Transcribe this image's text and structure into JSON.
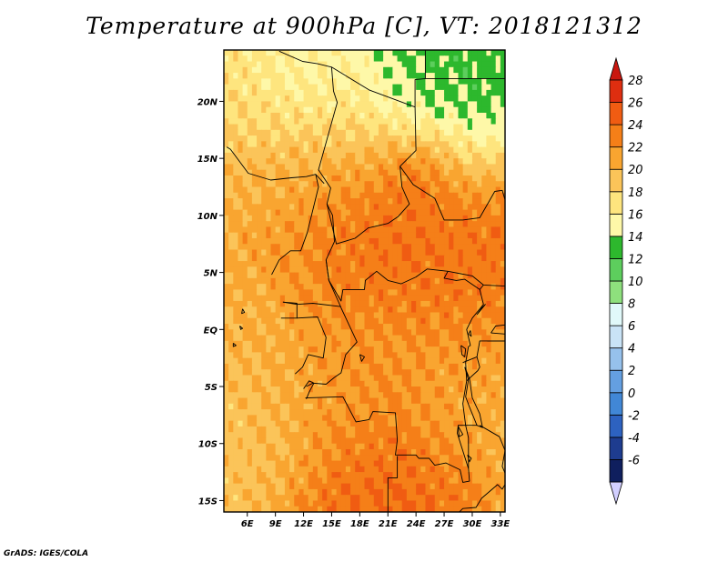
{
  "title": "Temperature at 900hPa [C], VT: 2018121312",
  "credit": "GrADS: IGES/COLA",
  "map": {
    "projection": "latlon",
    "lon_range": [
      3.5,
      33.5
    ],
    "lat_range": [
      -16,
      24.5
    ],
    "lat_ticks": [
      {
        "value": 20,
        "label": "20N"
      },
      {
        "value": 15,
        "label": "15N"
      },
      {
        "value": 10,
        "label": "10N"
      },
      {
        "value": 5,
        "label": "5N"
      },
      {
        "value": 0,
        "label": "EQ"
      },
      {
        "value": -5,
        "label": "5S"
      },
      {
        "value": -10,
        "label": "10S"
      },
      {
        "value": -15,
        "label": "15S"
      }
    ],
    "lon_ticks": [
      {
        "value": 6,
        "label": "6E"
      },
      {
        "value": 9,
        "label": "9E"
      },
      {
        "value": 12,
        "label": "12E"
      },
      {
        "value": 15,
        "label": "15E"
      },
      {
        "value": 18,
        "label": "18E"
      },
      {
        "value": 21,
        "label": "21E"
      },
      {
        "value": 24,
        "label": "24E"
      },
      {
        "value": 27,
        "label": "27E"
      },
      {
        "value": 30,
        "label": "30E"
      },
      {
        "value": 33,
        "label": "33E"
      }
    ],
    "field_centers": [
      {
        "lon": 19,
        "lat": 8,
        "r": 6,
        "v": 27
      },
      {
        "lon": 31,
        "lat": 6,
        "r": 5,
        "v": 26.5
      },
      {
        "lon": 20,
        "lat": -15,
        "r": 6,
        "v": 27
      },
      {
        "lon": 14,
        "lat": 8,
        "r": 4,
        "v": 25
      },
      {
        "lon": 25,
        "lat": 9,
        "r": 5,
        "v": 26
      },
      {
        "lon": 24,
        "lat": 13,
        "r": 2,
        "v": 27
      },
      {
        "lon": 25,
        "lat": 0,
        "r": 6,
        "v": 24
      },
      {
        "lon": 30,
        "lat": -5,
        "r": 4,
        "v": 22
      },
      {
        "lon": 6,
        "lat": 10,
        "r": 4,
        "v": 23
      },
      {
        "lon": 10,
        "lat": 12,
        "r": 4,
        "v": 23
      },
      {
        "lon": 15,
        "lat": 19,
        "r": 5,
        "v": 19
      },
      {
        "lon": 8,
        "lat": 20,
        "r": 6,
        "v": 19
      },
      {
        "lon": 12,
        "lat": 23,
        "r": 3,
        "v": 15.5
      },
      {
        "lon": 22,
        "lat": 23,
        "r": 4,
        "v": 14.5
      },
      {
        "lon": 29,
        "lat": 20,
        "r": 5,
        "v": 14
      },
      {
        "lon": 7,
        "lat": -10,
        "r": 4,
        "v": 21
      },
      {
        "lon": 8,
        "lat": 0,
        "r": 4,
        "v": 22
      },
      {
        "lon": 15,
        "lat": -3,
        "r": 5,
        "v": 23
      }
    ],
    "field_default": 20.5,
    "countries": [
      [
        [
          9.4,
          24.4
        ],
        [
          11.9,
          23.5
        ],
        [
          13.5,
          23.3
        ],
        [
          15.0,
          23.0
        ],
        [
          19.0,
          21.0
        ],
        [
          23.9,
          19.5
        ],
        [
          24.0,
          15.7
        ],
        [
          22.3,
          14.3
        ],
        [
          22.5,
          12.5
        ],
        [
          23.3,
          11.0
        ],
        [
          22.1,
          9.9
        ],
        [
          21.0,
          9.3
        ],
        [
          18.9,
          8.9
        ],
        [
          17.5,
          8.0
        ],
        [
          15.5,
          7.5
        ],
        [
          14.5,
          11.0
        ],
        [
          14.9,
          12.4
        ],
        [
          13.6,
          14.0
        ],
        [
          15.6,
          19.9
        ],
        [
          15.2,
          20.9
        ],
        [
          15.0,
          23.0
        ]
      ],
      [
        [
          3.8,
          16.0
        ],
        [
          4.2,
          15.8
        ],
        [
          6.1,
          13.7
        ],
        [
          8.5,
          13.1
        ],
        [
          10.7,
          13.3
        ],
        [
          12.3,
          13.4
        ],
        [
          13.3,
          13.6
        ],
        [
          14.2,
          12.8
        ]
      ],
      [
        [
          13.3,
          13.6
        ],
        [
          13.6,
          12.5
        ],
        [
          12.4,
          8.5
        ],
        [
          11.7,
          6.9
        ],
        [
          10.6,
          6.9
        ],
        [
          9.4,
          6.1
        ],
        [
          8.6,
          4.8
        ]
      ],
      [
        [
          14.5,
          11.0
        ],
        [
          15.1,
          10.0
        ],
        [
          15.3,
          7.7
        ],
        [
          14.4,
          6.1
        ],
        [
          14.7,
          4.3
        ],
        [
          15.8,
          2.3
        ],
        [
          16.0,
          1.9
        ]
      ],
      [
        [
          14.4,
          6.1
        ],
        [
          14.7,
          4.3
        ],
        [
          16.0,
          2.5
        ],
        [
          16.2,
          3.5
        ],
        [
          18.5,
          3.5
        ],
        [
          18.6,
          4.3
        ],
        [
          19.8,
          5.1
        ],
        [
          21.0,
          4.3
        ],
        [
          22.4,
          4.0
        ],
        [
          24.0,
          4.6
        ],
        [
          25.2,
          5.3
        ],
        [
          27.4,
          5.1
        ],
        [
          27.0,
          4.5
        ],
        [
          28.3,
          4.3
        ],
        [
          29.2,
          4.4
        ],
        [
          30.8,
          3.5
        ],
        [
          31.2,
          3.9
        ]
      ],
      [
        [
          23.9,
          19.5
        ],
        [
          23.9,
          21.9
        ],
        [
          25.0,
          22.0
        ],
        [
          36.0,
          22.0
        ]
      ],
      [
        [
          25.0,
          22.0
        ],
        [
          25.0,
          24.5
        ]
      ],
      [
        [
          22.3,
          14.3
        ],
        [
          23.7,
          12.7
        ],
        [
          26.0,
          11.5
        ],
        [
          27.0,
          9.6
        ],
        [
          29.0,
          9.6
        ],
        [
          30.8,
          9.8
        ],
        [
          32.4,
          12.1
        ],
        [
          33.2,
          12.2
        ],
        [
          34.0,
          10.0
        ],
        [
          33.5,
          8.0
        ],
        [
          35.0,
          4.9
        ]
      ],
      [
        [
          27.4,
          5.1
        ],
        [
          30.0,
          4.7
        ],
        [
          31.2,
          3.9
        ],
        [
          33.5,
          3.8
        ],
        [
          34.0,
          4.3
        ]
      ],
      [
        [
          9.8,
          2.4
        ],
        [
          11.3,
          2.3
        ],
        [
          11.3,
          1.0
        ],
        [
          9.6,
          1.0
        ]
      ],
      [
        [
          9.8,
          2.4
        ],
        [
          11.3,
          2.2
        ],
        [
          13.0,
          2.3
        ],
        [
          16.0,
          2.0
        ]
      ],
      [
        [
          11.3,
          1.0
        ],
        [
          13.5,
          1.1
        ],
        [
          14.4,
          -0.7
        ],
        [
          14.1,
          -2.5
        ],
        [
          12.5,
          -2.2
        ],
        [
          11.9,
          -3.3
        ],
        [
          11.1,
          -3.9
        ]
      ],
      [
        [
          16.0,
          1.9
        ],
        [
          17.7,
          -1.1
        ],
        [
          16.5,
          -2.2
        ],
        [
          16.0,
          -3.8
        ],
        [
          15.3,
          -4.2
        ],
        [
          14.4,
          -4.8
        ],
        [
          13.0,
          -4.7
        ],
        [
          12.3,
          -5.0
        ]
      ],
      [
        [
          12.0,
          -5.2
        ],
        [
          12.6,
          -4.5
        ],
        [
          13.1,
          -4.7
        ],
        [
          12.6,
          -5.5
        ],
        [
          12.3,
          -6.1
        ]
      ],
      [
        [
          12.2,
          -6.0
        ],
        [
          16.2,
          -5.9
        ],
        [
          17.6,
          -8.1
        ],
        [
          19.0,
          -7.9
        ],
        [
          19.4,
          -7.2
        ],
        [
          21.8,
          -7.3
        ],
        [
          22.0,
          -9.7
        ],
        [
          21.8,
          -11.0
        ],
        [
          24.0,
          -11.0
        ],
        [
          24.3,
          -11.3
        ],
        [
          25.4,
          -11.3
        ],
        [
          26.0,
          -11.9
        ],
        [
          27.2,
          -11.7
        ],
        [
          28.7,
          -12.3
        ],
        [
          29.0,
          -13.4
        ],
        [
          29.7,
          -13.3
        ],
        [
          29.6,
          -12.2
        ],
        [
          28.4,
          -9.1
        ],
        [
          28.5,
          -8.4
        ],
        [
          30.5,
          -8.4
        ]
      ],
      [
        [
          12.0,
          -17.3
        ],
        [
          14.0,
          -17.4
        ],
        [
          18.3,
          -17.4
        ],
        [
          21.0,
          -18.0
        ],
        [
          21.0,
          -13.0
        ],
        [
          22.0,
          -13.0
        ],
        [
          22.0,
          -11.1
        ]
      ],
      [
        [
          21.0,
          -16.5
        ],
        [
          24.0,
          -17.6
        ],
        [
          26.0,
          -17.8
        ],
        [
          28.0,
          -16.5
        ],
        [
          29.0,
          -15.7
        ],
        [
          30.4,
          -15.6
        ],
        [
          31.0,
          -14.8
        ],
        [
          32.7,
          -13.6
        ],
        [
          33.2,
          -14.0
        ],
        [
          33.8,
          -13.2
        ]
      ],
      [
        [
          30.8,
          -8.4
        ],
        [
          32.9,
          -9.4
        ],
        [
          33.5,
          -10.6
        ],
        [
          33.2,
          -12.0
        ],
        [
          33.8,
          -13.2
        ]
      ],
      [
        [
          29.6,
          -12.2
        ],
        [
          29.6,
          -9.5
        ],
        [
          29.3,
          -8.4
        ],
        [
          29.0,
          -6.5
        ],
        [
          29.4,
          -4.5
        ],
        [
          29.3,
          -2.9
        ],
        [
          29.6,
          -1.5
        ],
        [
          29.8,
          -1.4
        ],
        [
          29.4,
          0.0
        ],
        [
          30.0,
          1.0
        ],
        [
          30.9,
          1.9
        ],
        [
          31.2,
          2.2
        ],
        [
          30.8,
          3.5
        ]
      ],
      [
        [
          29.0,
          -2.9
        ],
        [
          30.5,
          -2.4
        ],
        [
          30.8,
          -1.0
        ],
        [
          34.0,
          -1.0
        ]
      ],
      [
        [
          29.4,
          -4.5
        ],
        [
          30.6,
          -3.6
        ],
        [
          30.8,
          -3.3
        ],
        [
          30.5,
          -2.4
        ]
      ],
      [
        [
          31.6,
          -1.0
        ],
        [
          33.5,
          -1.0
        ],
        [
          34.0,
          -1.0
        ]
      ],
      [
        [
          34.0,
          4.3
        ],
        [
          33.5,
          3.8
        ]
      ]
    ],
    "lakes": [
      [
        [
          29.2,
          -3.3
        ],
        [
          29.6,
          -4.4
        ],
        [
          29.3,
          -5.9
        ],
        [
          29.7,
          -6.8
        ],
        [
          30.5,
          -8.4
        ],
        [
          31.1,
          -8.6
        ],
        [
          30.8,
          -7.4
        ],
        [
          30.0,
          -6.0
        ],
        [
          29.7,
          -4.3
        ],
        [
          29.2,
          -3.3
        ]
      ],
      [
        [
          28.8,
          -1.4
        ],
        [
          29.3,
          -1.7
        ],
        [
          29.2,
          -2.4
        ],
        [
          28.9,
          -2.2
        ],
        [
          28.8,
          -1.4
        ]
      ],
      [
        [
          29.6,
          -0.4
        ],
        [
          29.9,
          -0.6
        ],
        [
          29.8,
          -0.1
        ],
        [
          29.6,
          -0.4
        ]
      ],
      [
        [
          30.5,
          1.3
        ],
        [
          31.4,
          2.2
        ],
        [
          31.0,
          1.9
        ],
        [
          30.5,
          1.3
        ]
      ],
      [
        [
          32.0,
          -0.3
        ],
        [
          33.5,
          -0.4
        ],
        [
          33.5,
          0.4
        ],
        [
          32.5,
          0.3
        ],
        [
          32.0,
          -0.3
        ]
      ],
      [
        [
          28.5,
          -8.5
        ],
        [
          29.0,
          -9.2
        ],
        [
          28.6,
          -9.4
        ],
        [
          28.5,
          -8.5
        ]
      ],
      [
        [
          29.5,
          -11.0
        ],
        [
          29.9,
          -11.3
        ],
        [
          29.7,
          -11.6
        ],
        [
          29.5,
          -11.0
        ]
      ],
      [
        [
          27.0,
          -16.6
        ],
        [
          28.6,
          -16.4
        ],
        [
          28.3,
          -17.0
        ],
        [
          27.0,
          -16.6
        ]
      ],
      [
        [
          18.0,
          -2.2
        ],
        [
          18.5,
          -2.4
        ],
        [
          18.2,
          -2.8
        ],
        [
          18.0,
          -2.2
        ]
      ],
      [
        [
          5.2,
          0.3
        ],
        [
          5.5,
          0.1
        ],
        [
          5.3,
          0.0
        ],
        [
          5.2,
          0.3
        ]
      ],
      [
        [
          5.5,
          1.8
        ],
        [
          5.7,
          1.5
        ],
        [
          5.4,
          1.4
        ],
        [
          5.5,
          1.8
        ]
      ],
      [
        [
          4.5,
          -1.2
        ],
        [
          4.8,
          -1.4
        ],
        [
          4.5,
          -1.5
        ],
        [
          4.5,
          -1.2
        ]
      ]
    ]
  },
  "colorbar": {
    "colors": [
      "#0f1f5e",
      "#1e3c8f",
      "#2d62c0",
      "#4187d6",
      "#649fe1",
      "#96c1ec",
      "#c9e3f6",
      "#e1f9fa",
      "#8ee07d",
      "#5dce5d",
      "#2db82d",
      "#fef8a8",
      "#fee57e",
      "#fbc459",
      "#f9a530",
      "#f57f18",
      "#f05c12",
      "#de2e10"
    ],
    "labels": [
      "-6",
      "-4",
      "-2",
      "0",
      "2",
      "4",
      "6",
      "8",
      "10",
      "12",
      "14",
      "16",
      "18",
      "20",
      "22",
      "24",
      "26",
      "28"
    ],
    "under_color": "#d2cfff",
    "over_color": "#c9170f",
    "min": -6,
    "step": 2
  },
  "colors": {
    "ocean_fill": "#f8d27a",
    "border": "#000000",
    "background": "#ffffff"
  }
}
